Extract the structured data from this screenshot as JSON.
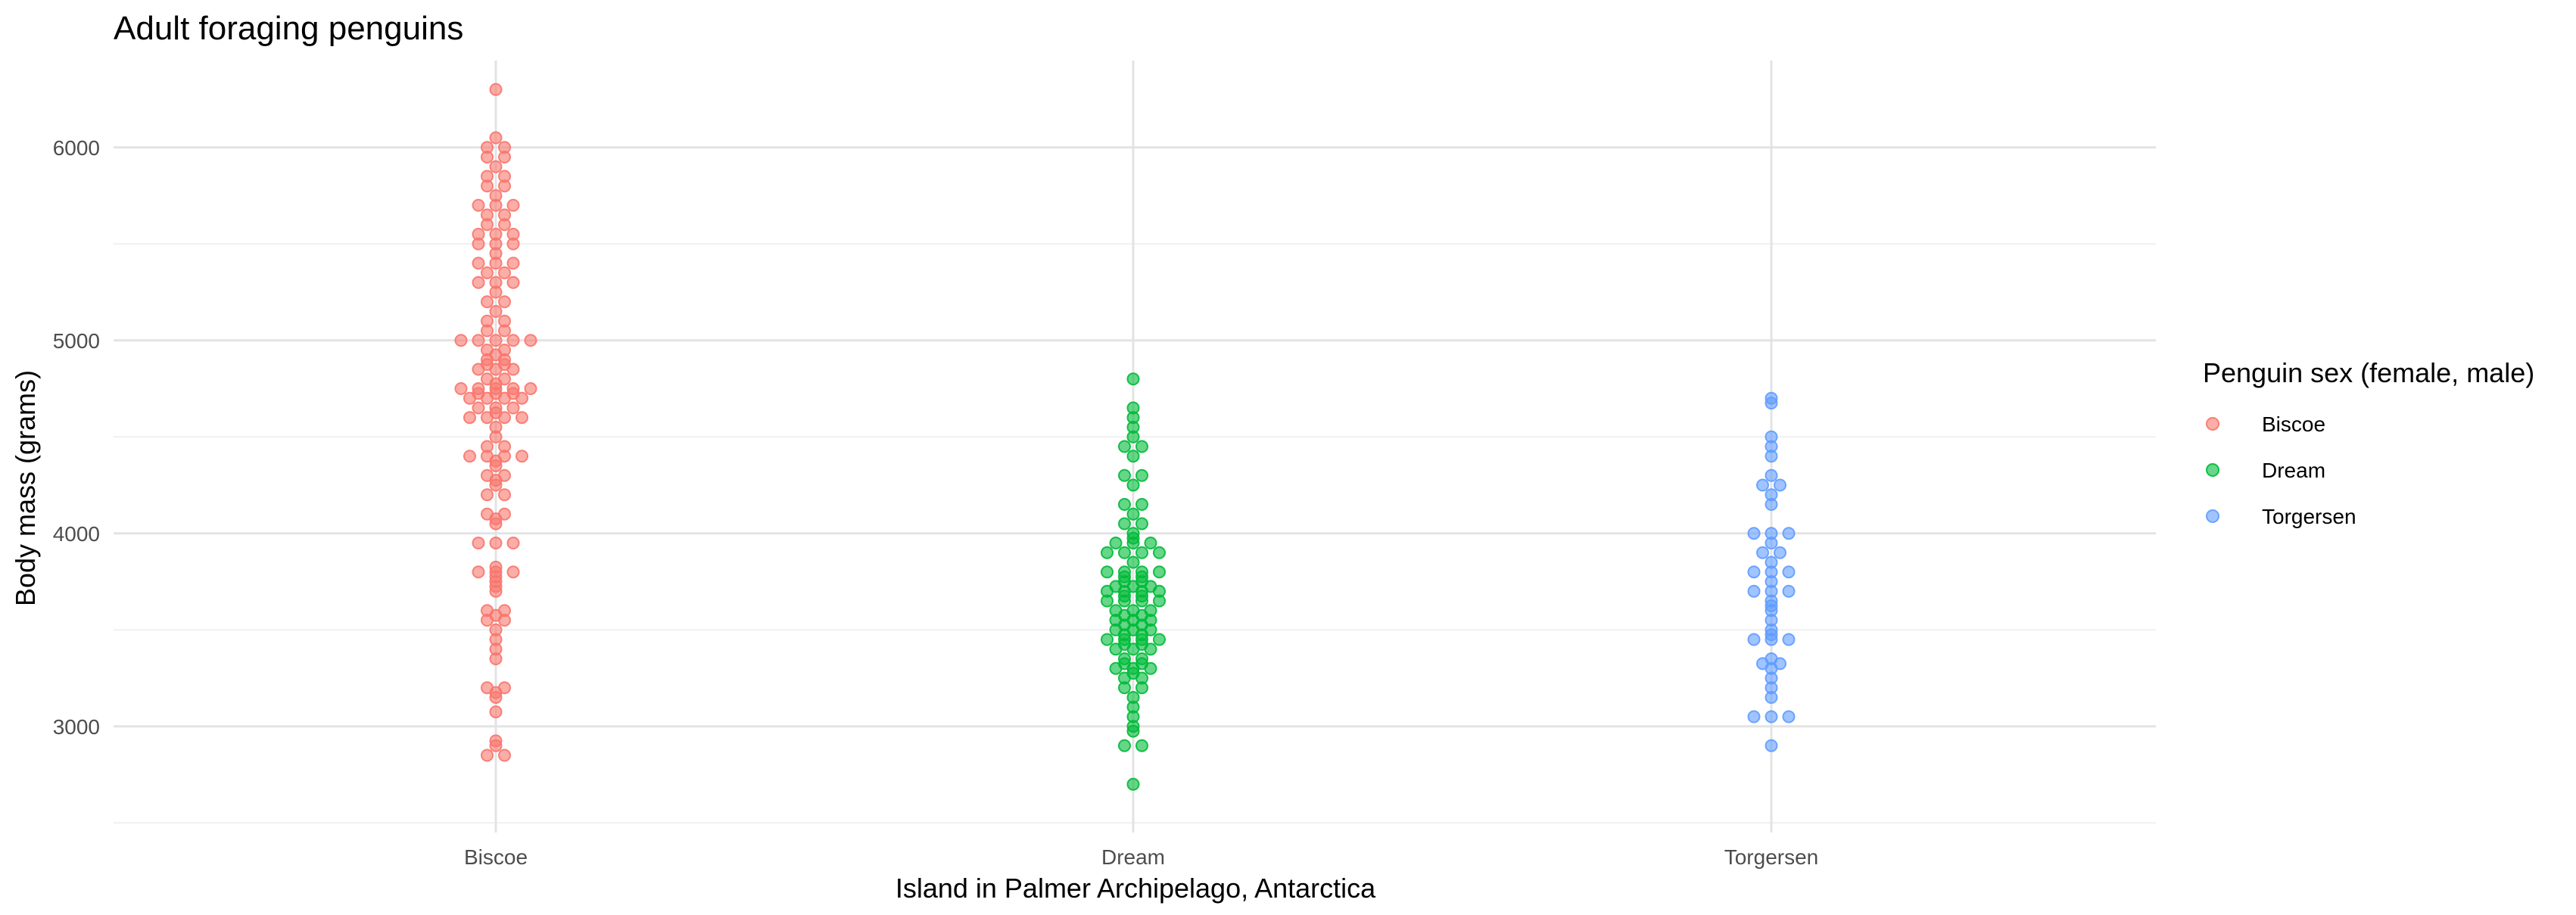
{
  "chart_data": {
    "type": "scatter",
    "title": "Adult foraging penguins",
    "xlabel": "Island in Palmer Archipelago, Antarctica",
    "ylabel": "Body mass (grams)",
    "categories": [
      "Biscoe",
      "Dream",
      "Torgersen"
    ],
    "y_ticks": [
      3000,
      4000,
      5000,
      6000
    ],
    "ylim": [
      2450,
      6450
    ],
    "grid": true,
    "legend": {
      "title": "Penguin sex (female, male)",
      "placement": "right",
      "entries": [
        "Biscoe",
        "Dream",
        "Torgersen"
      ]
    },
    "colors": {
      "Biscoe": "#F8766D",
      "Dream": "#00BA38",
      "Torgersen": "#619CFF"
    },
    "point_alpha": 0.6,
    "series": [
      {
        "name": "Biscoe",
        "values": [
          2850,
          2850,
          2900,
          2925,
          3075,
          3150,
          3175,
          3200,
          3200,
          3350,
          3400,
          3450,
          3500,
          3550,
          3550,
          3575,
          3600,
          3600,
          3700,
          3725,
          3750,
          3775,
          3800,
          3800,
          3800,
          3825,
          3950,
          3950,
          3950,
          4050,
          4075,
          4100,
          4100,
          4200,
          4200,
          4250,
          4275,
          4300,
          4300,
          4350,
          4375,
          4400,
          4400,
          4400,
          4400,
          4450,
          4450,
          4500,
          4550,
          4600,
          4600,
          4600,
          4600,
          4625,
          4650,
          4650,
          4650,
          4700,
          4700,
          4700,
          4700,
          4725,
          4725,
          4725,
          4750,
          4750,
          4750,
          4750,
          4750,
          4775,
          4800,
          4800,
          4850,
          4850,
          4850,
          4875,
          4875,
          4900,
          4900,
          4925,
          4950,
          4950,
          5000,
          5000,
          5000,
          5000,
          5000,
          5050,
          5050,
          5100,
          5100,
          5150,
          5200,
          5200,
          5250,
          5300,
          5300,
          5300,
          5350,
          5350,
          5400,
          5400,
          5400,
          5450,
          5500,
          5500,
          5500,
          5550,
          5550,
          5550,
          5600,
          5600,
          5650,
          5650,
          5700,
          5700,
          5700,
          5750,
          5800,
          5800,
          5850,
          5850,
          5900,
          5950,
          5950,
          6000,
          6000,
          6050,
          6300
        ]
      },
      {
        "name": "Dream",
        "values": [
          2700,
          2900,
          2900,
          2975,
          3000,
          3050,
          3100,
          3150,
          3200,
          3200,
          3250,
          3250,
          3275,
          3300,
          3300,
          3300,
          3325,
          3325,
          3350,
          3350,
          3400,
          3400,
          3400,
          3425,
          3425,
          3450,
          3450,
          3450,
          3450,
          3475,
          3475,
          3500,
          3500,
          3500,
          3525,
          3525,
          3550,
          3550,
          3550,
          3575,
          3575,
          3600,
          3600,
          3600,
          3650,
          3650,
          3650,
          3650,
          3675,
          3675,
          3700,
          3700,
          3700,
          3700,
          3725,
          3725,
          3725,
          3750,
          3750,
          3775,
          3775,
          3800,
          3800,
          3800,
          3800,
          3850,
          3900,
          3900,
          3900,
          3900,
          3950,
          3950,
          3950,
          3975,
          4000,
          4050,
          4050,
          4100,
          4150,
          4150,
          4250,
          4300,
          4300,
          4400,
          4450,
          4450,
          4500,
          4550,
          4600,
          4650,
          4800
        ]
      },
      {
        "name": "Torgersen",
        "values": [
          2900,
          3050,
          3050,
          3050,
          3150,
          3200,
          3250,
          3300,
          3325,
          3325,
          3350,
          3450,
          3450,
          3450,
          3475,
          3500,
          3550,
          3600,
          3625,
          3650,
          3700,
          3700,
          3700,
          3750,
          3800,
          3800,
          3800,
          3850,
          3900,
          3900,
          3950,
          4000,
          4000,
          4000,
          4150,
          4200,
          4250,
          4250,
          4300,
          4400,
          4450,
          4500,
          4675,
          4700
        ]
      }
    ]
  }
}
